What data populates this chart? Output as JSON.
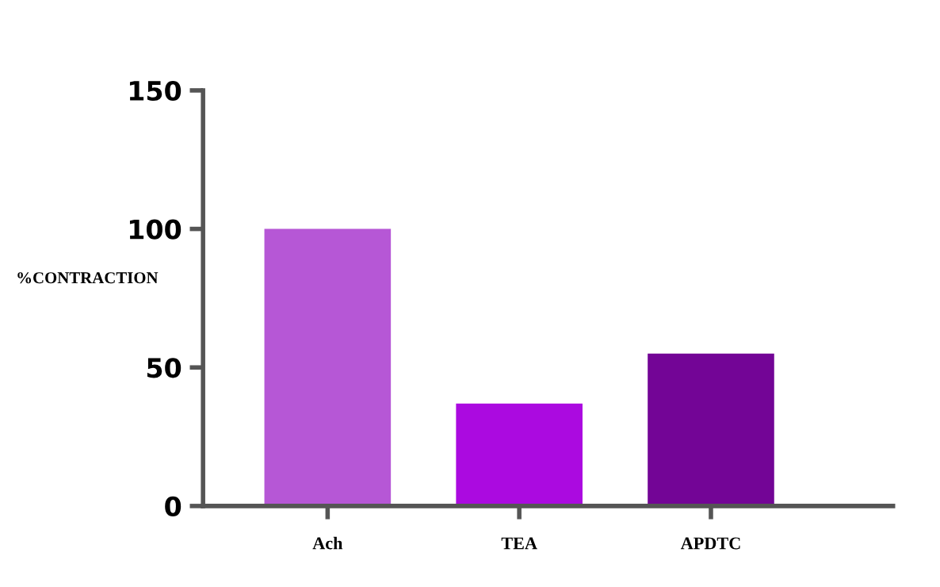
{
  "chart_data": {
    "type": "bar",
    "ylabel": "%CONTRACTION",
    "categories": [
      "Ach",
      "TEA",
      "APDTC"
    ],
    "values": [
      100,
      37,
      55
    ],
    "colors": [
      "#b657d6",
      "#ab0ae0",
      "#730596"
    ],
    "ylim": [
      0,
      150
    ],
    "yticks": [
      0,
      50,
      100,
      150
    ],
    "grid": false,
    "legend": false
  }
}
